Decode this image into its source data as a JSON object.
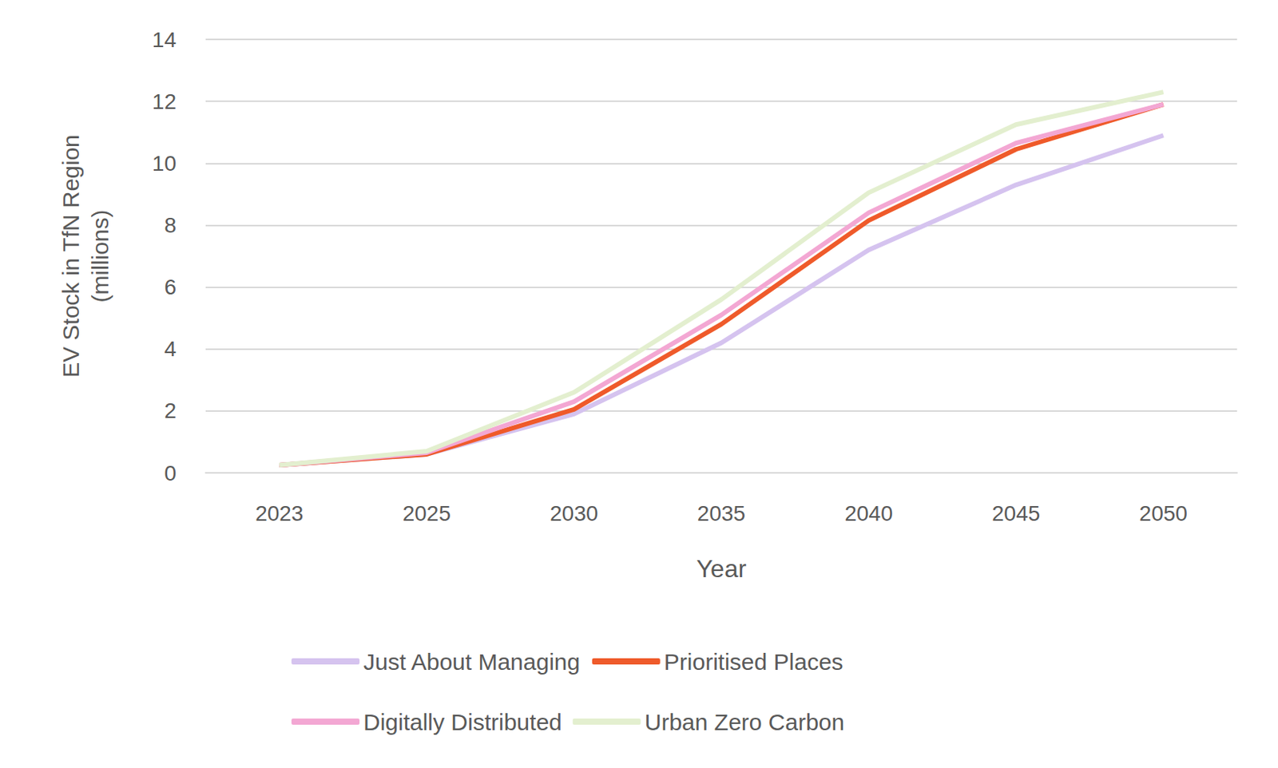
{
  "chart_data": {
    "type": "line",
    "x_label": "Year",
    "y_label": "EV Stock in TfN Region\n(millions)",
    "categories": [
      "2023",
      "2025",
      "2030",
      "2035",
      "2040",
      "2045",
      "2050"
    ],
    "series": [
      {
        "name": "Just About Managing",
        "color": "#d5c3ef",
        "values": [
          0.25,
          0.6,
          1.9,
          4.2,
          7.2,
          9.3,
          10.9
        ]
      },
      {
        "name": "Prioritised Places",
        "color": "#ef5a2a",
        "values": [
          0.25,
          0.6,
          2.05,
          4.8,
          8.15,
          10.45,
          11.9
        ]
      },
      {
        "name": "Digitally Distributed",
        "color": "#f3a7d3",
        "values": [
          0.25,
          0.65,
          2.3,
          5.1,
          8.4,
          10.65,
          11.9
        ]
      },
      {
        "name": "Urban Zero Carbon",
        "color": "#e3efcf",
        "values": [
          0.25,
          0.7,
          2.6,
          5.6,
          9.05,
          11.25,
          12.3
        ]
      }
    ],
    "ylim": [
      0,
      14
    ],
    "yticks": [
      0,
      2,
      4,
      6,
      8,
      10,
      12,
      14
    ],
    "grid": true,
    "legend": "bottom",
    "marker": "none"
  }
}
